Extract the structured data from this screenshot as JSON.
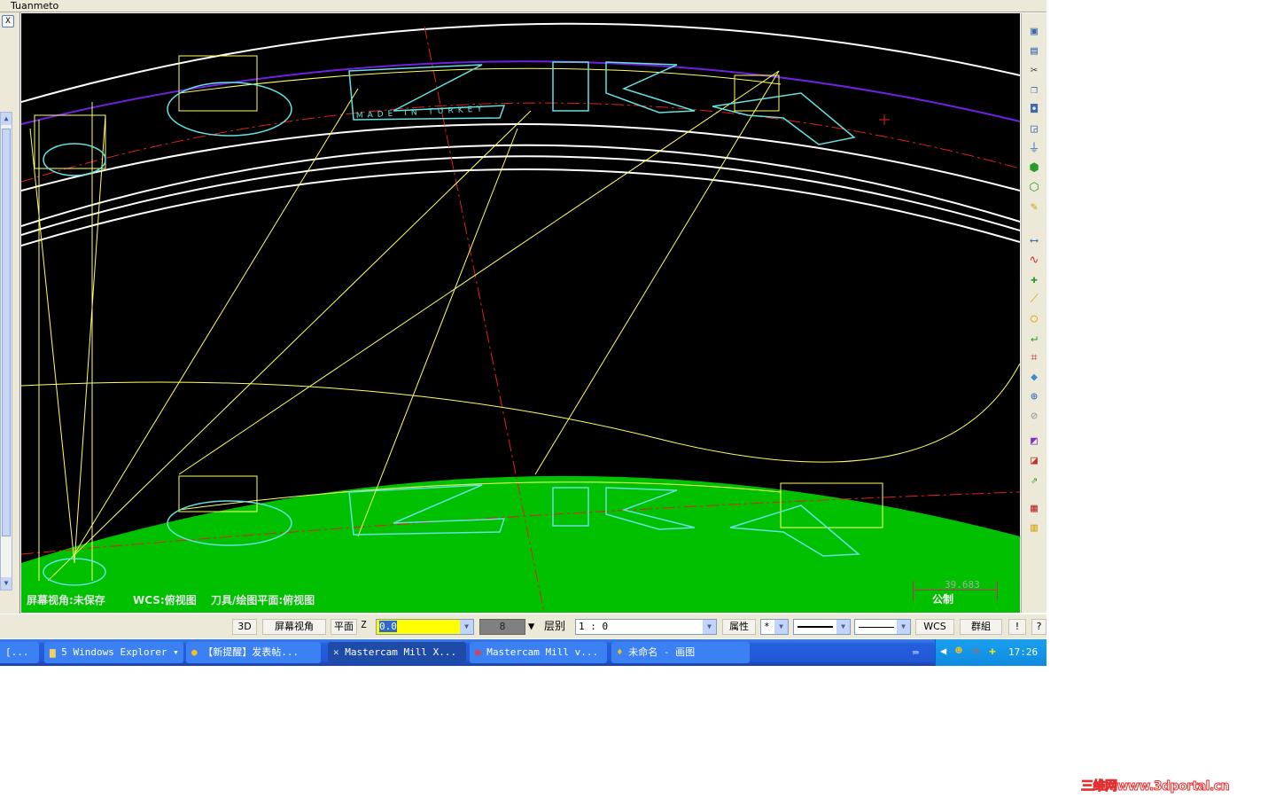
{
  "window": {
    "title": "Tuanmeto"
  },
  "left_panel": {
    "close_label": "X"
  },
  "viewport": {
    "drawing_text": "MADE IN TURKEY",
    "status": {
      "screen_view": "屏幕视角:未保存",
      "wcs": "WCS:俯视图",
      "tool_plane": "刀具/绘图平面:俯视图"
    },
    "scale": {
      "value": "39.683",
      "unit": "公制"
    },
    "colors": {
      "background": "#000000",
      "wireframe": "#ffff66",
      "text_outline": "#66e0e0",
      "green_band": "#00c000",
      "ring": "#ffffff",
      "purple_arc": "#7020e0",
      "centerline": "#e02020"
    }
  },
  "right_toolbar": {
    "icons": [
      "save-icon",
      "print-icon",
      "cut-icon",
      "copy-icon",
      "fit-icon",
      "window-zoom-icon",
      "plane-icon",
      "iso-view-icon",
      "shaded-icon",
      "measure-icon",
      "dimension-icon",
      "spline-icon",
      "point-icon",
      "line-icon",
      "circle-icon",
      "fillet-icon",
      "trim-icon",
      "solid-icon",
      "globe-icon",
      "no-icon",
      "color-icon",
      "layer-color-icon",
      "attribute-icon",
      "palette-icon",
      "layers-icon"
    ]
  },
  "bottom_bar": {
    "btn_3d": "3D",
    "screen_view": "屏幕视角",
    "plane": "平面",
    "z_label": "Z",
    "z_value": "0.0",
    "color_value": "8",
    "level_label": "层别",
    "level_value": "1 : 0",
    "attributes": "属性",
    "point_style": "*",
    "wcs": "WCS",
    "group": "群組",
    "excl": "!",
    "help": "?"
  },
  "taskbar": {
    "items": [
      {
        "label": "[..."
      },
      {
        "label": "5 Windows Explorer"
      },
      {
        "label": "【新提醒】发表帖..."
      },
      {
        "label": "Mastercam Mill X..."
      },
      {
        "label": "Mastercam Mill v..."
      },
      {
        "label": "未命名 - 画图"
      }
    ],
    "clock": "17:26"
  },
  "watermark": "三维网www.3dportal.cn"
}
